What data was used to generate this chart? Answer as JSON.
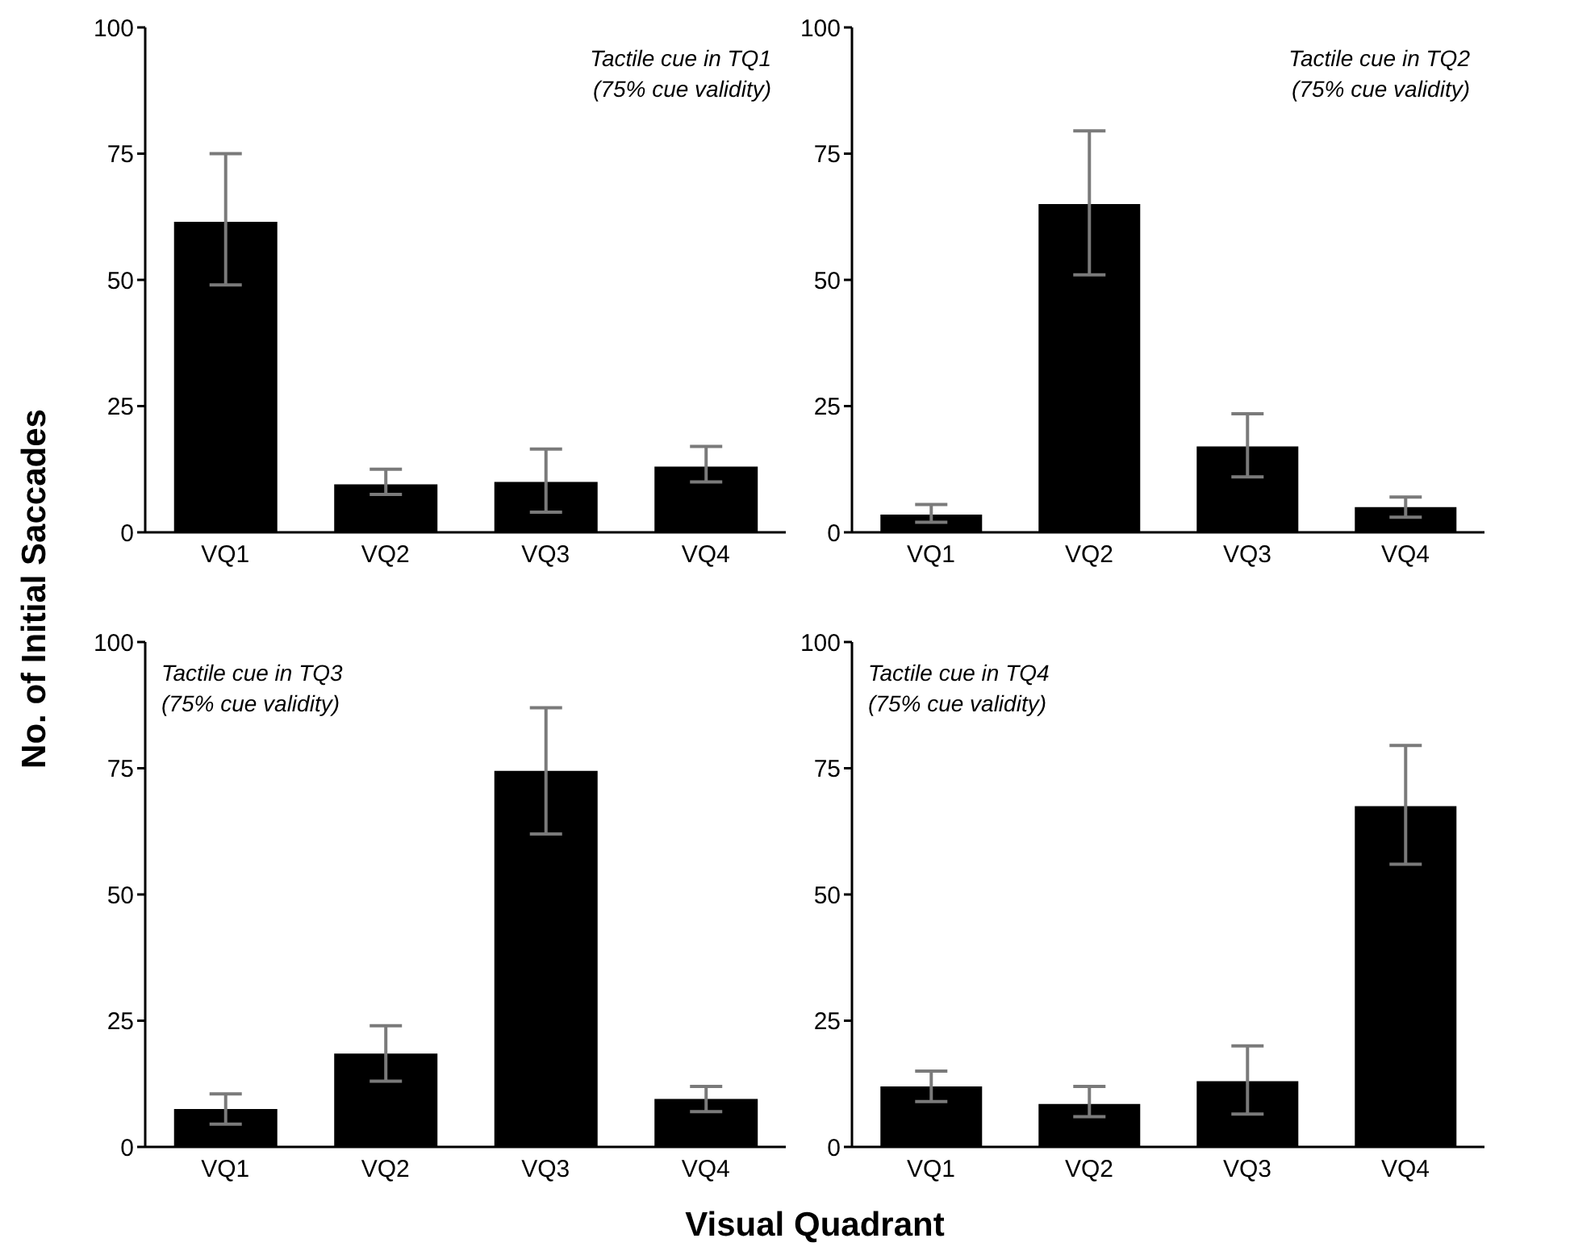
{
  "chart_data": [
    {
      "type": "bar",
      "ylabel": "No. of Initial Saccades",
      "categories": [
        "VQ1",
        "VQ2",
        "VQ3",
        "VQ4"
      ],
      "values": [
        61.5,
        9.5,
        10,
        13
      ],
      "errors": [
        [
          49,
          75
        ],
        [
          7.5,
          12.5
        ],
        [
          4,
          16.5
        ],
        [
          10,
          17
        ]
      ],
      "color": "#000000",
      "ylim": [
        0,
        100
      ],
      "yticks": [
        0,
        25,
        50,
        75,
        100
      ],
      "annotations": [
        "Tactile cue in TQ1",
        "(75% cue validity)"
      ]
    },
    {
      "type": "bar",
      "categories": [
        "VQ1",
        "VQ2",
        "VQ3",
        "VQ4"
      ],
      "values": [
        3.5,
        65,
        17,
        5
      ],
      "errors": [
        [
          2,
          5.5
        ],
        [
          51,
          79.5
        ],
        [
          11,
          23.5
        ],
        [
          3,
          7
        ]
      ],
      "color": "#000000",
      "ylim": [
        0,
        100
      ],
      "yticks": [
        0,
        25,
        50,
        75,
        100
      ],
      "annotations": [
        "Tactile cue in TQ2",
        "(75% cue validity)"
      ]
    },
    {
      "type": "bar",
      "categories": [
        "VQ1",
        "VQ2",
        "VQ3",
        "VQ4"
      ],
      "values": [
        7.5,
        18.5,
        74.5,
        9.5
      ],
      "errors": [
        [
          4.5,
          10.5
        ],
        [
          13,
          24
        ],
        [
          62,
          87
        ],
        [
          7,
          12
        ]
      ],
      "color": "#000000",
      "ylim": [
        0,
        100
      ],
      "yticks": [
        0,
        25,
        50,
        75,
        100
      ],
      "annotations": [
        "Tactile cue in TQ3",
        "(75% cue validity)"
      ]
    },
    {
      "type": "bar",
      "xlabel": "Visual Quadrant",
      "categories": [
        "VQ1",
        "VQ2",
        "VQ3",
        "VQ4"
      ],
      "values": [
        12,
        8.5,
        13,
        67.5
      ],
      "errors": [
        [
          9,
          15
        ],
        [
          6,
          12
        ],
        [
          6.5,
          20
        ],
        [
          56,
          79.5
        ]
      ],
      "color": "#000000",
      "ylim": [
        0,
        100
      ],
      "yticks": [
        0,
        25,
        50,
        75,
        100
      ],
      "annotations": [
        "Tactile cue in TQ4",
        "(75% cue validity)"
      ]
    }
  ]
}
